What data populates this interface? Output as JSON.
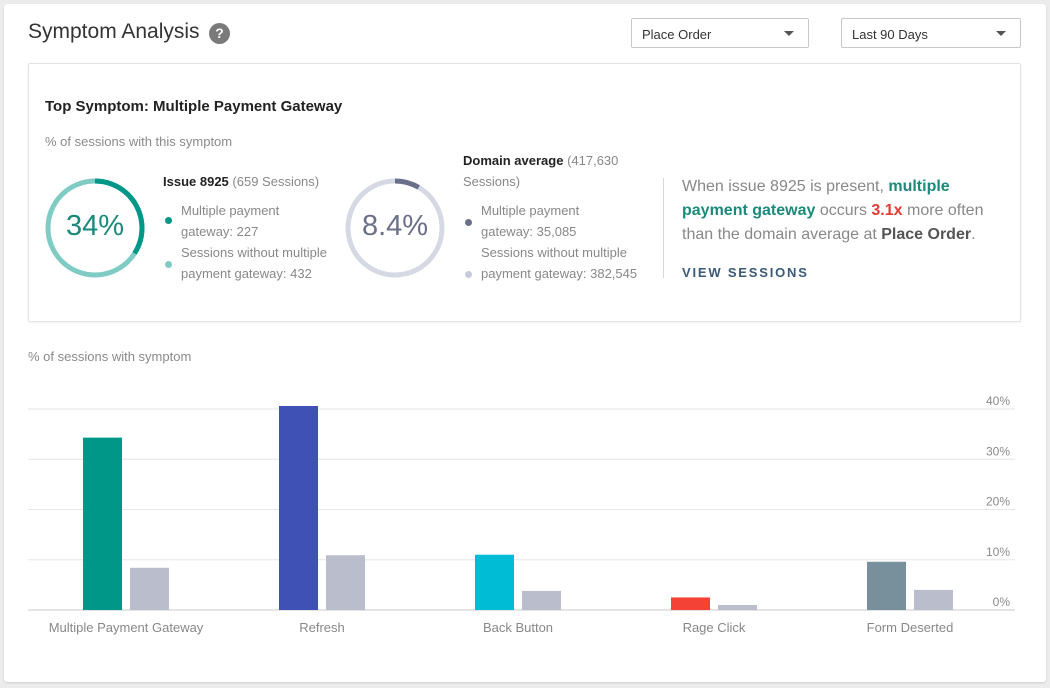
{
  "header": {
    "title": "Symptom Analysis",
    "help_icon": "question-circle-icon",
    "help_glyph": "?",
    "page_select": "Place Order",
    "range_select": "Last 90 Days"
  },
  "top_symptom": {
    "title": "Top Symptom: Multiple Payment Gateway",
    "subtitle": "% of sessions with this symptom",
    "issue": {
      "percent_label": "34%",
      "percent": 34,
      "name": "Issue 8925",
      "sessions": "(659 Sessions)",
      "legend": [
        {
          "text": "Multiple payment gateway: 227",
          "color": "#009688"
        },
        {
          "text": "Sessions without multiple payment gateway: 432",
          "color": "#80cbc4"
        }
      ]
    },
    "domain": {
      "percent_label": "8.4%",
      "percent": 8.4,
      "name": "Domain average",
      "sessions": "(417,630 Sessions)",
      "legend": [
        {
          "text": "Multiple payment gateway: 35,085",
          "color": "#6b7089"
        },
        {
          "text": "Sessions without multiple payment gateway: 382,545",
          "color": "#c5cbdb"
        }
      ]
    },
    "summary": {
      "p1": "When issue 8925 is present, ",
      "highlight": "multiple payment gateway",
      "p2": " occurs ",
      "multiplier": "3.1x",
      "p3": " more often than the domain average at ",
      "screen": "Place Order",
      "p4": "."
    },
    "view_label": "VIEW SESSIONS"
  },
  "chart_section": {
    "subtitle": "% of sessions with symptom"
  },
  "chart_data": {
    "type": "bar",
    "title": "",
    "xlabel": "",
    "ylabel": "",
    "ylim": [
      0,
      40
    ],
    "y_ticks": [
      "0%",
      "10%",
      "20%",
      "30%",
      "40%"
    ],
    "grid": true,
    "categories": [
      "Multiple Payment Gateway",
      "Refresh",
      "Back Button",
      "Rage Click",
      "Form Deserted"
    ],
    "series": [
      {
        "values": [
          34.3,
          40.6,
          11.0,
          2.5,
          9.6
        ],
        "colors": [
          "#009688",
          "#3f51b5",
          "#00bcd4",
          "#f44336",
          "#78909c"
        ]
      },
      {
        "values": [
          8.4,
          10.9,
          3.8,
          1.0,
          4.0
        ],
        "color": "#b9bdcc"
      }
    ]
  }
}
